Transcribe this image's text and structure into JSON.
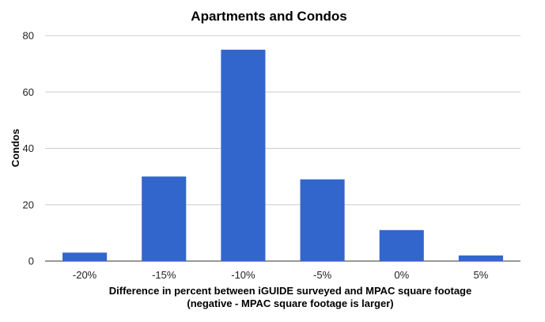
{
  "chart_data": {
    "type": "bar",
    "title": "Apartments and Condos",
    "xlabel_lines": [
      "Difference in percent between iGUIDE surveyed and MPAC square footage",
      "(negative - MPAC square footage is larger)"
    ],
    "ylabel": "Condos",
    "categories": [
      "-20%",
      "-15%",
      "-10%",
      "-5%",
      "0%",
      "5%"
    ],
    "values": [
      3,
      30,
      75,
      29,
      11,
      2
    ],
    "ylim": [
      0,
      80
    ],
    "yticks": [
      0,
      20,
      40,
      60,
      80
    ],
    "grid": true,
    "bar_color": "#3366cc",
    "legend": "none"
  }
}
